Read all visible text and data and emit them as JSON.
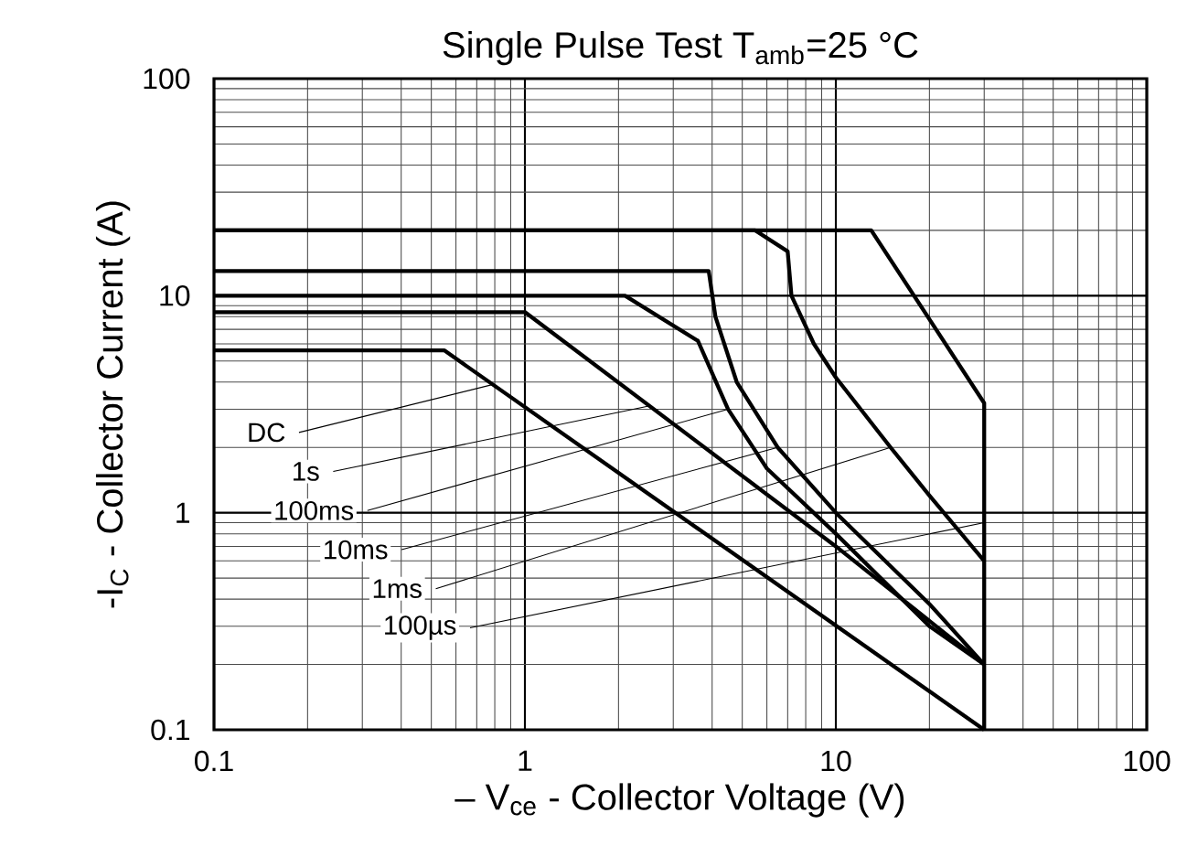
{
  "chart_data": {
    "type": "line",
    "title": "Single Pulse Test T$_{amb}$=25 °C",
    "xlabel": "– V$_{ce}$ - Collector Voltage (V)",
    "ylabel": "-I$_{C}$ - Collector Current (A)",
    "log": "xy",
    "grid": true,
    "marker": "none",
    "line_style": "solid",
    "xlim": [
      0.1,
      100
    ],
    "ylim": [
      0.1,
      100
    ],
    "xticks": [
      0.1,
      1,
      10,
      100
    ],
    "yticks": [
      0.1,
      1,
      10,
      100
    ],
    "series": [
      {
        "color": "#000000",
        "x": [
          0.1,
          0.55,
          30
        ],
        "values": [
          5.6,
          5.6,
          0.1
        ]
      },
      {
        "color": "#000000",
        "x": [
          0.1,
          1,
          10,
          30
        ],
        "values": [
          8.4,
          8.4,
          0.7,
          0.2
        ]
      },
      {
        "color": "#000000",
        "x": [
          0.1,
          2.1,
          3.6,
          4.5,
          6,
          10,
          20,
          30
        ],
        "values": [
          10,
          10,
          6.2,
          3,
          1.6,
          0.8,
          0.3,
          0.2
        ]
      },
      {
        "color": "#000000",
        "x": [
          0.1,
          3.9,
          4.1,
          4.8,
          6.5,
          10,
          20,
          30
        ],
        "values": [
          13,
          13,
          8,
          4,
          2,
          1,
          0.38,
          0.2
        ]
      },
      {
        "color": "#000000",
        "x": [
          0.1,
          5.5,
          7,
          7.2,
          8.5,
          10,
          15,
          20,
          30
        ],
        "values": [
          20,
          20,
          16,
          10,
          6,
          4.2,
          2,
          1.2,
          0.6
        ]
      },
      {
        "color": "#000000",
        "x": [
          0.1,
          13,
          30,
          30
        ],
        "values": [
          20,
          20,
          3.2,
          0.1
        ]
      }
    ],
    "annotations": [
      {
        "text": "DC",
        "x": 0.79,
        "y": 3.9
      },
      {
        "text": "1s",
        "x": 2.5,
        "y": 3.1
      },
      {
        "text": "100ms",
        "x": 4.5,
        "y": 3
      },
      {
        "text": "10ms",
        "x": 6.5,
        "y": 2
      },
      {
        "text": "1ms",
        "x": 15,
        "y": 2
      },
      {
        "text": "100µs",
        "x": 30,
        "y": 0.9
      }
    ]
  }
}
